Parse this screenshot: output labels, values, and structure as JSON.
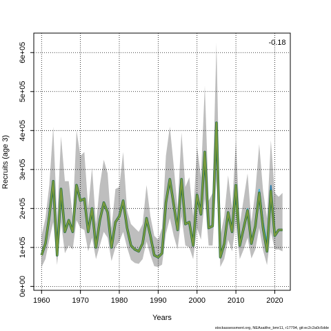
{
  "chart_data": {
    "type": "line",
    "title": "",
    "xlabel": "Years",
    "ylabel": "Recruits (age 3)",
    "annotation": "-0.18",
    "footnote": "stockassessment.org, NEAsaithe_bmr11, r17794, git:ec2c2a0c6dde",
    "xlim": [
      1958,
      2024
    ],
    "ylim": [
      -10000,
      650000
    ],
    "x_ticks": [
      1960,
      1970,
      1980,
      1990,
      2000,
      2010,
      2020
    ],
    "y_ticks": [
      0,
      100000,
      200000,
      300000,
      400000,
      500000,
      600000
    ],
    "y_tick_labels": [
      "0e+00",
      "1e+05",
      "2e+05",
      "3e+05",
      "4e+05",
      "5e+05",
      "6e+05"
    ],
    "grid": true,
    "grid_style": "dotted",
    "colors": {
      "band": "#bebebe",
      "retro_lines": [
        "#2d1a75",
        "#2b7aa8",
        "#4db8d4",
        "#1e9a5a",
        "#3cb04a",
        "#8ec64a"
      ],
      "retro_fills": [
        "#2d1a75",
        "#2b7aa8",
        "#7fd1e8",
        "#1e9a5a",
        "#3cb04a",
        "#c9dc66"
      ],
      "main_line": "#7a9a3c"
    },
    "years": [
      1960,
      1961,
      1962,
      1963,
      1964,
      1965,
      1966,
      1967,
      1968,
      1969,
      1970,
      1971,
      1972,
      1973,
      1974,
      1975,
      1976,
      1977,
      1978,
      1979,
      1980,
      1981,
      1982,
      1983,
      1984,
      1985,
      1986,
      1987,
      1988,
      1989,
      1990,
      1991,
      1992,
      1993,
      1994,
      1995,
      1996,
      1997,
      1998,
      1999,
      2000,
      2001,
      2002,
      2003,
      2004,
      2005,
      2006,
      2007,
      2008,
      2009,
      2010,
      2011,
      2012,
      2013,
      2014,
      2015,
      2016,
      2017,
      2018,
      2019,
      2020,
      2021,
      2022
    ],
    "estimate": [
      80000,
      110000,
      180000,
      270000,
      80000,
      250000,
      140000,
      170000,
      140000,
      260000,
      220000,
      225000,
      140000,
      200000,
      100000,
      170000,
      215000,
      190000,
      100000,
      165000,
      180000,
      220000,
      150000,
      105000,
      95000,
      90000,
      110000,
      175000,
      130000,
      80000,
      75000,
      85000,
      215000,
      275000,
      210000,
      145000,
      275000,
      160000,
      165000,
      105000,
      235000,
      185000,
      345000,
      150000,
      155000,
      420000,
      75000,
      110000,
      190000,
      140000,
      260000,
      105000,
      150000,
      195000,
      110000,
      155000,
      240000,
      150000,
      90000,
      245000,
      130000,
      145000,
      145000
    ],
    "upper": [
      130000,
      175000,
      260000,
      410000,
      170000,
      385000,
      270000,
      270000,
      180000,
      400000,
      335000,
      345000,
      200000,
      305000,
      160000,
      260000,
      325000,
      290000,
      150000,
      250000,
      255000,
      345000,
      195000,
      160000,
      150000,
      140000,
      160000,
      260000,
      180000,
      130000,
      120000,
      150000,
      335000,
      410000,
      310000,
      200000,
      395000,
      255000,
      280000,
      180000,
      360000,
      280000,
      515000,
      220000,
      240000,
      625000,
      130000,
      180000,
      285000,
      200000,
      375000,
      160000,
      225000,
      290000,
      165000,
      245000,
      365000,
      245000,
      175000,
      375000,
      240000,
      230000,
      240000
    ],
    "lower": [
      50000,
      70000,
      120000,
      165000,
      55000,
      165000,
      85000,
      105000,
      95000,
      170000,
      150000,
      145000,
      90000,
      125000,
      70000,
      105000,
      140000,
      125000,
      65000,
      100000,
      115000,
      140000,
      100000,
      68000,
      60000,
      58000,
      70000,
      115000,
      80000,
      52000,
      50000,
      56000,
      135000,
      175000,
      130000,
      95000,
      180000,
      105000,
      100000,
      70000,
      150000,
      120000,
      225000,
      105000,
      105000,
      275000,
      50000,
      70000,
      120000,
      90000,
      165000,
      70000,
      95000,
      125000,
      72000,
      95000,
      150000,
      92000,
      55000,
      140000,
      95000,
      95000,
      90000
    ],
    "retro_series": [
      {
        "end_year": 2022,
        "values": [
          130000,
          145000,
          145000
        ]
      },
      {
        "end_year": 2020,
        "values": [
          220000,
          110000,
          155000,
          200000,
          115000,
          160000,
          250000,
          165000,
          110000,
          260000,
          130000
        ]
      },
      {
        "end_year": 2019,
        "values": [
          220000,
          110000,
          155000,
          200000,
          115000,
          160000,
          250000,
          165000,
          110000,
          245000
        ]
      },
      {
        "end_year": 2018,
        "values": [
          215000,
          108000,
          150000,
          195000,
          112000,
          155000,
          240000,
          150000,
          90000
        ]
      },
      {
        "end_year": 2017,
        "values": [
          210000,
          105000,
          150000,
          195000,
          110000,
          150000,
          230000,
          140000
        ]
      },
      {
        "end_year": 2016,
        "values": [
          210000,
          105000,
          148000,
          193000,
          108000,
          148000,
          225000
        ]
      }
    ]
  }
}
